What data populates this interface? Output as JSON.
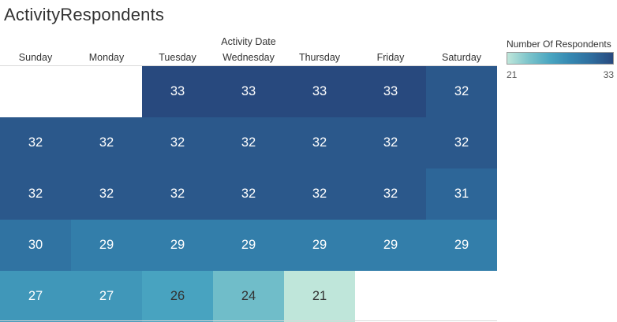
{
  "title": "ActivityRespondents",
  "axis_title": "Activity Date",
  "days": [
    "Sunday",
    "Monday",
    "Tuesday",
    "Wednesday",
    "Thursday",
    "Friday",
    "Saturday"
  ],
  "legend": {
    "title": "Number Of Respondents",
    "min_label": "21",
    "max_label": "33",
    "min": 21,
    "max": 33,
    "color_low": "#bfe6da",
    "color_high": "#28497e"
  },
  "weeks": [
    [
      null,
      null,
      "33",
      "33",
      "33",
      "33",
      "32"
    ],
    [
      "32",
      "32",
      "32",
      "32",
      "32",
      "32",
      "32"
    ],
    [
      "32",
      "32",
      "32",
      "32",
      "32",
      "32",
      "31"
    ],
    [
      "30",
      "29",
      "29",
      "29",
      "29",
      "29",
      "29"
    ],
    [
      "27",
      "27",
      "26",
      "24",
      "21",
      null,
      null
    ]
  ]
}
